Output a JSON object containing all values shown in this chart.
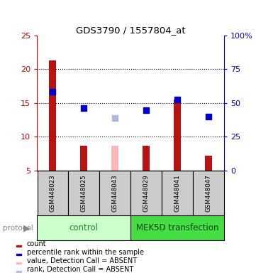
{
  "title": "GDS3790 / 1557804_at",
  "samples": [
    "GSM448023",
    "GSM448025",
    "GSM448043",
    "GSM448029",
    "GSM448041",
    "GSM448047"
  ],
  "bar_heights_red": [
    21.3,
    8.7,
    5.0,
    8.7,
    15.5,
    7.2
  ],
  "bar_absent_pink": [
    null,
    null,
    8.7,
    null,
    null,
    null
  ],
  "dots_blue_y": [
    16.7,
    14.3,
    null,
    13.9,
    15.5,
    13.0
  ],
  "dots_absent_blue_y": [
    null,
    null,
    12.8,
    null,
    null,
    null
  ],
  "ylim_left": [
    5,
    25
  ],
  "ylim_right": [
    0,
    100
  ],
  "yticks_left": [
    5,
    10,
    15,
    20,
    25
  ],
  "yticks_right": [
    0,
    25,
    50,
    75,
    100
  ],
  "ytick_labels_right": [
    "0",
    "25",
    "50",
    "75",
    "100%"
  ],
  "left_axis_color": "#cc0000",
  "right_axis_color": "#0000cc",
  "bar_color_red": "#bb1111",
  "bar_color_pink": "#ffb6b6",
  "dot_color_blue": "#0000cc",
  "dot_color_absent": "#b0b8e0",
  "ctrl_color": "#ccffcc",
  "mek_color": "#44dd44",
  "ctrl_label_color": "#228822",
  "mek_label_color": "#004400",
  "legend_items": [
    {
      "label": "count",
      "color": "#bb1111"
    },
    {
      "label": "percentile rank within the sample",
      "color": "#0000cc"
    },
    {
      "label": "value, Detection Call = ABSENT",
      "color": "#ffb6b6"
    },
    {
      "label": "rank, Detection Call = ABSENT",
      "color": "#b8bce0"
    }
  ],
  "bar_bottom": 5,
  "background_color": "#ffffff",
  "sample_box_color": "#cccccc",
  "grid_dotted_at": [
    10,
    15,
    20
  ]
}
